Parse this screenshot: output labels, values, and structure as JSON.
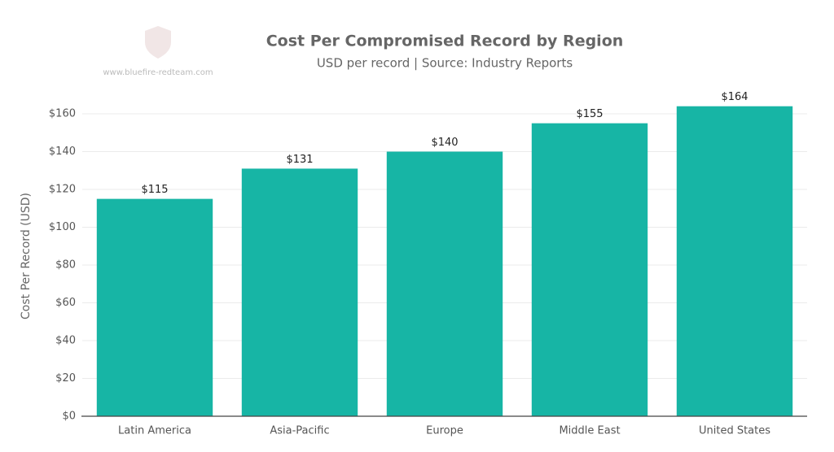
{
  "chart_data": {
    "type": "bar",
    "title": "Cost Per Compromised Record by Region",
    "subtitle": "USD per record | Source: Industry Reports",
    "watermark": "www.bluefire-redteam.com",
    "y_label": "Cost Per Record (USD)",
    "categories": [
      "Latin America",
      "Asia-Pacific",
      "Europe",
      "Middle East",
      "United States"
    ],
    "values": [
      115,
      131,
      140,
      155,
      164
    ],
    "value_labels": [
      "$115",
      "$131",
      "$140",
      "$155",
      "$164"
    ],
    "color": "#17b5a5",
    "ylim": [
      0,
      170
    ],
    "yticks": [
      {
        "value": 0,
        "label": "$0"
      },
      {
        "value": 20,
        "label": "$20"
      },
      {
        "value": 40,
        "label": "$40"
      },
      {
        "value": 60,
        "label": "$60"
      },
      {
        "value": 80,
        "label": "$80"
      },
      {
        "value": 100,
        "label": "$100"
      },
      {
        "value": 120,
        "label": "$120"
      },
      {
        "value": 140,
        "label": "$140"
      },
      {
        "value": 160,
        "label": "$160"
      }
    ],
    "grid": true
  }
}
